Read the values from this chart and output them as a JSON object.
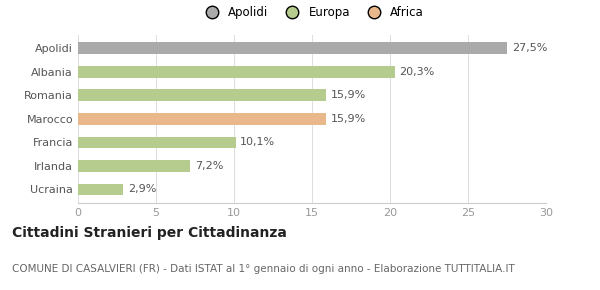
{
  "categories": [
    "Apolidi",
    "Albania",
    "Romania",
    "Marocco",
    "Francia",
    "Irlanda",
    "Ucraina"
  ],
  "values": [
    27.5,
    20.3,
    15.9,
    15.9,
    10.1,
    7.2,
    2.9
  ],
  "labels": [
    "27,5%",
    "20,3%",
    "15,9%",
    "15,9%",
    "10,1%",
    "7,2%",
    "2,9%"
  ],
  "colors": [
    "#aaaaaa",
    "#b5cc8e",
    "#b5cc8e",
    "#e8b88a",
    "#b5cc8e",
    "#b5cc8e",
    "#b5cc8e"
  ],
  "legend": [
    {
      "label": "Apolidi",
      "color": "#aaaaaa"
    },
    {
      "label": "Europa",
      "color": "#b5cc8e"
    },
    {
      "label": "Africa",
      "color": "#e8b88a"
    }
  ],
  "xlim": [
    0,
    30
  ],
  "xticks": [
    0,
    5,
    10,
    15,
    20,
    25,
    30
  ],
  "title": "Cittadini Stranieri per Cittadinanza",
  "subtitle": "COMUNE DI CASALVIERI (FR) - Dati ISTAT al 1° gennaio di ogni anno - Elaborazione TUTTITALIA.IT",
  "bg_color": "#ffffff",
  "bar_height": 0.5,
  "title_fontsize": 10,
  "subtitle_fontsize": 7.5,
  "tick_fontsize": 8,
  "label_fontsize": 8
}
